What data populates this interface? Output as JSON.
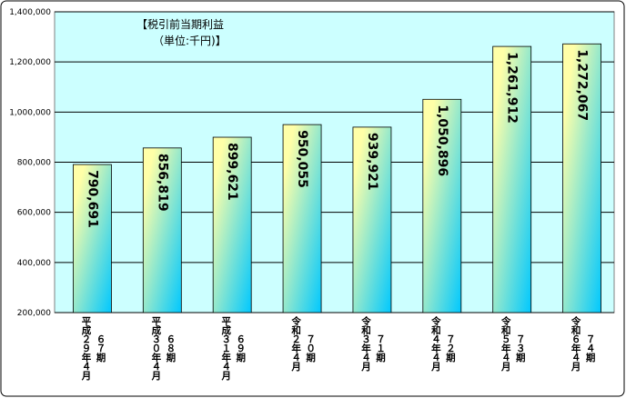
{
  "chart_data": {
    "type": "bar",
    "title": "【税引前当期利益",
    "subtitle": "（単位:千円)】",
    "categories": [
      [
        "平成２９年４月",
        "６７期"
      ],
      [
        "平成３０年４月",
        "６８期"
      ],
      [
        "平成３１年４月",
        "６９期"
      ],
      [
        "令和２年４月",
        "７０期"
      ],
      [
        "令和３年４月",
        "７１期"
      ],
      [
        "令和４年４月",
        "７２期"
      ],
      [
        "令和５年４月",
        "７３期"
      ],
      [
        "令和６年４月",
        "７４期"
      ]
    ],
    "values": [
      790691,
      856819,
      899621,
      950055,
      939921,
      1050896,
      1261912,
      1272067
    ],
    "value_labels": [
      "790,691",
      "856,819",
      "899,621",
      "950,055",
      "939,921",
      "1,050,896",
      "1,261,912",
      "1,272,067"
    ],
    "colors": [
      "#ffffa8",
      "#00c8ff"
    ],
    "ylim": [
      200000,
      1400000
    ],
    "yticks": [
      {
        "value": 200000,
        "label": "200,000"
      },
      {
        "value": 400000,
        "label": "400,000"
      },
      {
        "value": 600000,
        "label": "600,000"
      },
      {
        "value": 800000,
        "label": "800,000"
      },
      {
        "value": 1000000,
        "label": "1,000,000"
      },
      {
        "value": 1200000,
        "label": "1,200,000"
      },
      {
        "value": 1400000,
        "label": "1,400,000"
      }
    ],
    "grid": true
  }
}
